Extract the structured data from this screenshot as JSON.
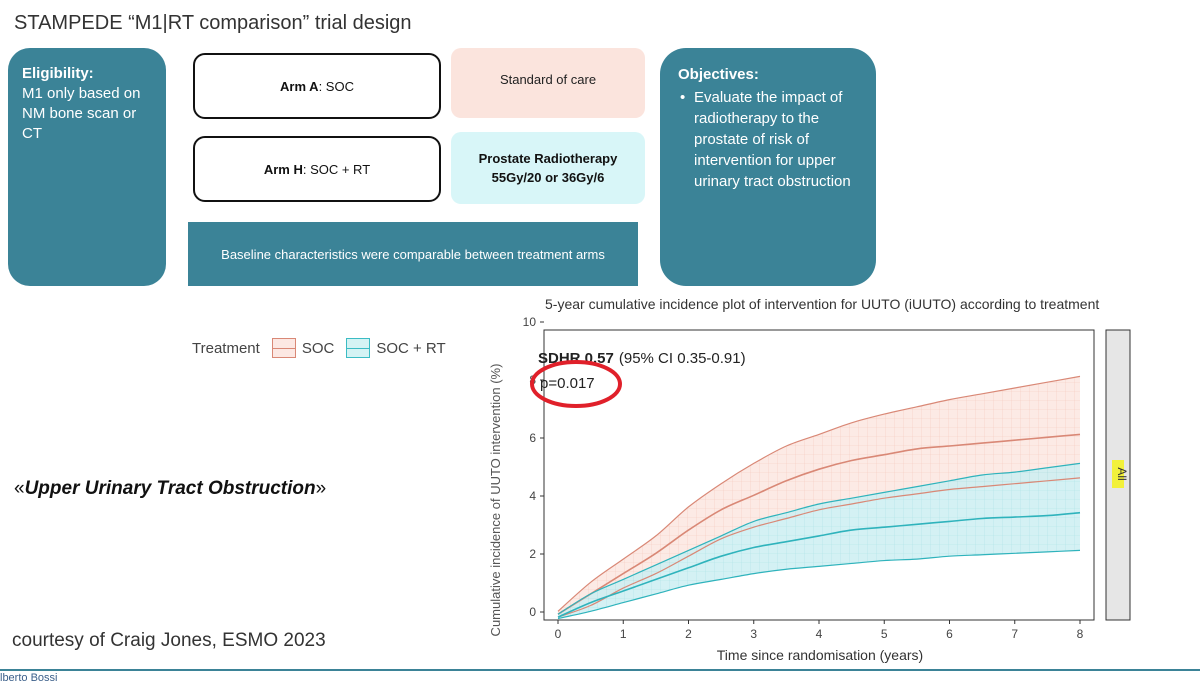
{
  "slide": {
    "title": "STAMPEDE “M1|RT comparison” trial design",
    "eligibility": {
      "heading": "Eligibility:",
      "text": "M1 only based on NM bone scan or CT"
    },
    "arm_a": {
      "label": "Arm A",
      "rest": ": SOC"
    },
    "arm_h": {
      "label": "Arm H",
      "rest": ": SOC + RT"
    },
    "soc_box": "Standard of care",
    "rt_box": {
      "line1": "Prostate Radiotherapy",
      "line2": "55Gy/20 or 36Gy/6"
    },
    "baseline": "Baseline characteristics were comparable between treatment arms",
    "objectives": {
      "heading": "Objectives:",
      "bullet": "Evaluate the impact of radiotherapy to the prostate of risk of intervention for upper urinary tract obstruction"
    },
    "uuto_open": "«",
    "uuto_text": "Upper Urinary Tract Obstruction",
    "uuto_close": "»",
    "courtesy": "courtesy of Craig Jones, ESMO 2023",
    "author": "lberto Bossi"
  },
  "chart_data": {
    "type": "line",
    "title": "5-year cumulative incidence plot of intervention for UUTO (iUUTO) according to treatment",
    "xlabel": "Time since randomisation (years)",
    "ylabel": "Cumulative incidence of UUTO intervention (%)",
    "xlim": [
      0,
      8
    ],
    "ylim": [
      0,
      10
    ],
    "xticks": [
      0,
      1,
      2,
      3,
      4,
      5,
      6,
      7,
      8
    ],
    "yticks": [
      0,
      2,
      4,
      6,
      8,
      10
    ],
    "legend_title": "Treatment",
    "legend_position": "top-left",
    "facet_label": "All",
    "annotation_sdhr": "SDHR 0.57",
    "annotation_ci": "(95% CI 0.35-0.91)",
    "annotation_p": "p=0.017",
    "colors": {
      "soc": "#d98876",
      "soc_fill": "#fce6e0",
      "rt": "#2fb3bc",
      "rt_fill": "#cdeff2"
    },
    "x": [
      0,
      0.5,
      1,
      1.5,
      2,
      2.5,
      3,
      3.5,
      4,
      4.5,
      5,
      5.5,
      6,
      6.5,
      7,
      7.5,
      8
    ],
    "series": [
      {
        "name": "SOC",
        "values": [
          0.2,
          0.9,
          1.6,
          2.3,
          3.1,
          3.8,
          4.3,
          4.8,
          5.2,
          5.5,
          5.7,
          5.9,
          6.0,
          6.1,
          6.2,
          6.3,
          6.4
        ],
        "lower": [
          0.1,
          0.5,
          1.1,
          1.6,
          2.2,
          2.8,
          3.2,
          3.5,
          3.8,
          4.0,
          4.2,
          4.35,
          4.5,
          4.6,
          4.7,
          4.8,
          4.9
        ],
        "upper": [
          0.3,
          1.3,
          2.1,
          2.9,
          3.9,
          4.7,
          5.4,
          6.0,
          6.4,
          6.8,
          7.1,
          7.35,
          7.6,
          7.8,
          8.0,
          8.2,
          8.4
        ]
      },
      {
        "name": "SOC + RT",
        "values": [
          0.1,
          0.6,
          1.0,
          1.4,
          1.8,
          2.2,
          2.5,
          2.7,
          2.9,
          3.1,
          3.2,
          3.3,
          3.4,
          3.5,
          3.55,
          3.6,
          3.7
        ],
        "lower": [
          0.05,
          0.3,
          0.6,
          0.9,
          1.2,
          1.4,
          1.6,
          1.75,
          1.85,
          1.95,
          2.05,
          2.1,
          2.2,
          2.25,
          2.3,
          2.35,
          2.4
        ],
        "upper": [
          0.2,
          0.9,
          1.4,
          1.9,
          2.4,
          2.9,
          3.4,
          3.7,
          4.0,
          4.2,
          4.4,
          4.6,
          4.8,
          5.0,
          5.1,
          5.25,
          5.4
        ]
      }
    ]
  }
}
